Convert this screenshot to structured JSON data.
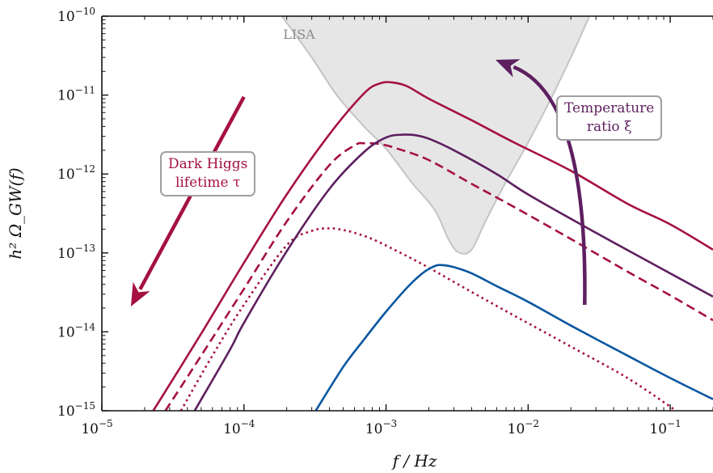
{
  "chart_data": {
    "type": "line",
    "xscale": "log",
    "yscale": "log",
    "xlim": [
      1e-05,
      0.2
    ],
    "ylim": [
      1e-15,
      1e-10
    ],
    "xlabel": "f / Hz",
    "ylabel": "h² Ω_GW(f)",
    "x_ticks": [
      {
        "value": 1e-05,
        "label": "10",
        "exp": "−5"
      },
      {
        "value": 0.0001,
        "label": "10",
        "exp": "−4"
      },
      {
        "value": 0.001,
        "label": "10",
        "exp": "−3"
      },
      {
        "value": 0.01,
        "label": "10",
        "exp": "−2"
      },
      {
        "value": 0.1,
        "label": "10",
        "exp": "−1"
      }
    ],
    "y_ticks": [
      {
        "value": 1e-15,
        "label": "10",
        "exp": "−15"
      },
      {
        "value": 1e-14,
        "label": "10",
        "exp": "−14"
      },
      {
        "value": 1e-13,
        "label": "10",
        "exp": "−13"
      },
      {
        "value": 1e-12,
        "label": "10",
        "exp": "−12"
      },
      {
        "value": 1e-11,
        "label": "10",
        "exp": "−11"
      },
      {
        "value": 1e-10,
        "label": "10",
        "exp": "−10"
      }
    ],
    "region": {
      "name": "LISA",
      "color": "#e6e6e6",
      "edge_color": "#c4c4c4",
      "x": [
        0.000185,
        0.0003,
        0.00045,
        0.0007,
        0.001,
        0.0015,
        0.0022,
        0.0028,
        0.0033,
        0.004,
        0.005,
        0.007,
        0.01,
        0.014,
        0.02,
        0.027
      ],
      "y": [
        1e-10,
        3e-11,
        1e-11,
        4e-12,
        2.1e-12,
        8e-13,
        3.5e-13,
        1.4e-13,
        1e-13,
        1.1e-13,
        2.5e-13,
        8e-13,
        2.5e-12,
        8e-12,
        3e-11,
        1e-10
      ]
    },
    "series": [
      {
        "color": "#a51140",
        "dash": "solid",
        "x": [
          2.3e-05,
          5e-05,
          0.0001,
          0.0002,
          0.0004,
          0.0007,
          0.0009,
          0.0011,
          0.0014,
          0.002,
          0.004,
          0.008,
          0.02,
          0.05,
          0.1,
          0.2
        ],
        "y": [
          1e-15,
          9.5e-15,
          7.5e-14,
          5.5e-13,
          3.2e-12,
          1.05e-11,
          1.4e-11,
          1.45e-11,
          1.3e-11,
          9e-12,
          4.8e-12,
          2.5e-12,
          1.1e-12,
          4.2e-13,
          2.3e-13,
          1.1e-13
        ]
      },
      {
        "color": "#a51140",
        "dash": "dashed",
        "x": [
          2.8e-05,
          5e-05,
          0.0001,
          0.0002,
          0.0004,
          0.0006,
          0.0007,
          0.0009,
          0.0012,
          0.002,
          0.004,
          0.008,
          0.02,
          0.05,
          0.1,
          0.2
        ],
        "y": [
          1e-15,
          5e-15,
          3.5e-14,
          2.5e-13,
          1.3e-12,
          2.3e-12,
          2.45e-12,
          2.4e-12,
          2.1e-12,
          1.5e-12,
          7.5e-13,
          3.8e-13,
          1.5e-13,
          5.8e-14,
          2.9e-14,
          1.4e-14
        ]
      },
      {
        "color": "#a51140",
        "dash": "dotted",
        "x": [
          3.6e-05,
          6e-05,
          0.0001,
          0.0002,
          0.0003,
          0.0004,
          0.0005,
          0.0006,
          0.0008,
          0.0012,
          0.002,
          0.004,
          0.008,
          0.02,
          0.05,
          0.11
        ],
        "y": [
          1e-15,
          5e-15,
          2.2e-14,
          1.25e-13,
          1.9e-13,
          2.05e-13,
          1.95e-13,
          1.8e-13,
          1.5e-13,
          1.05e-13,
          6.5e-14,
          3.2e-14,
          1.6e-14,
          6.5e-15,
          2.6e-15,
          1e-15
        ]
      },
      {
        "color": "#5e1f5f",
        "dash": "solid",
        "x": [
          4.5e-05,
          8e-05,
          0.0001,
          0.0002,
          0.0004,
          0.0007,
          0.001,
          0.0013,
          0.0016,
          0.002,
          0.003,
          0.006,
          0.01,
          0.03,
          0.1,
          0.2
        ],
        "y": [
          1e-15,
          6e-15,
          1.3e-14,
          1.05e-13,
          6.5e-13,
          1.9e-12,
          2.9e-12,
          3.15e-12,
          3.1e-12,
          2.8e-12,
          2e-12,
          1e-12,
          5.5e-13,
          1.8e-13,
          5.5e-14,
          2.8e-14
        ]
      },
      {
        "color": "#0a57a0",
        "dash": "solid",
        "x": [
          0.00032,
          0.0005,
          0.0007,
          0.001,
          0.0014,
          0.0018,
          0.0022,
          0.0025,
          0.003,
          0.004,
          0.006,
          0.01,
          0.02,
          0.05,
          0.1,
          0.2
        ],
        "y": [
          1e-15,
          3.6e-15,
          8e-15,
          1.8e-14,
          3.6e-14,
          5.5e-14,
          6.8e-14,
          7e-14,
          6.6e-14,
          5.5e-14,
          3.8e-14,
          2.4e-14,
          1.2e-14,
          5e-15,
          2.6e-15,
          1.4e-15
        ]
      }
    ],
    "annotations": [
      {
        "lines": [
          "Dark Higgs",
          "lifetime τ"
        ],
        "color": "#a51140",
        "arrow_color": "#a51140",
        "arrow_from": [
          0.0001,
          9.5e-12
        ],
        "arrow_to": [
          1.6e-05,
          2.1e-14
        ]
      },
      {
        "lines": [
          "Temperature",
          "ratio ξ"
        ],
        "color": "#5e1f5f",
        "arrow_color": "#5e1f5f",
        "arrow_from": [
          0.025,
          2.2e-14
        ],
        "arrow_to": [
          0.0059,
          2.8e-11
        ]
      }
    ]
  }
}
